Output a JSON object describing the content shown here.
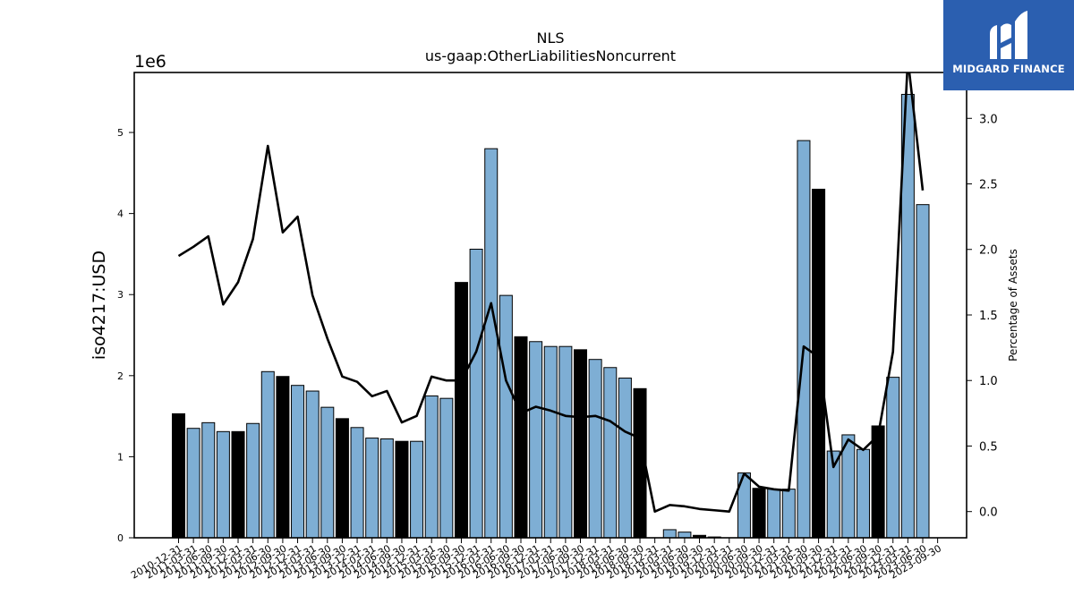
{
  "logo": {
    "text": "MIDGARD FINANCE",
    "icon": "midgard-logo-icon",
    "color": "#2b5fb0"
  },
  "chart_data": {
    "type": "bar",
    "title": "NLS",
    "subtitle": "us-gaap:OtherLiabilitiesNoncurrent",
    "ylabel": "iso4217:USD",
    "y_offset_label": "1e6",
    "y2label": "Percentage of Assets",
    "ylim": [
      0,
      5740000
    ],
    "y2lim": [
      -0.2,
      3.35
    ],
    "yticks": [
      "0",
      "1",
      "2",
      "3",
      "4",
      "5"
    ],
    "y2ticks": [
      "0.0",
      "0.5",
      "1.0",
      "1.5",
      "2.0",
      "2.5",
      "3.0"
    ],
    "grid": false,
    "colors": {
      "bar": "#7eaed4",
      "annual_bar": "#000000",
      "line": "#000000"
    },
    "categories": [
      "2010-12-31",
      "2011-03-31",
      "2011-06-30",
      "2011-09-30",
      "2011-12-31",
      "2012-03-31",
      "2012-06-30",
      "2012-09-30",
      "2012-12-31",
      "2013-03-31",
      "2013-06-30",
      "2013-09-30",
      "2013-12-31",
      "2014-03-31",
      "2014-06-30",
      "2014-09-30",
      "2014-12-31",
      "2015-03-31",
      "2015-06-30",
      "2015-09-30",
      "2015-12-31",
      "2016-03-31",
      "2016-06-30",
      "2016-09-30",
      "2016-12-31",
      "2017-03-31",
      "2017-06-30",
      "2017-09-30",
      "2017-12-31",
      "2018-03-31",
      "2018-06-30",
      "2018-09-30",
      "2018-12-31",
      "2019-03-31",
      "2019-06-30",
      "2019-09-30",
      "2019-12-31",
      "2020-03-31",
      "2020-06-30",
      "2020-09-30",
      "2020-12-31",
      "2021-03-31",
      "2021-06-30",
      "2021-09-30",
      "2021-12-31",
      "2022-03-31",
      "2022-06-30",
      "2022-09-30",
      "2022-12-31",
      "2023-03-31",
      "2023-06-30",
      "2023-09-30"
    ],
    "tick_labels": [
      "2010-12-31",
      "2011-03-31",
      "2011-06-30",
      "2011-09-30",
      "2011-12-31",
      "2012-03-31",
      "2012-06-30",
      "2012-09-30",
      "2012-12-31",
      "2013-03-31",
      "2013-06-30",
      "2013-09-30",
      "2013-12-31",
      "2014-03-31",
      "2014-06-30",
      "2014-09-30",
      "2014-12-31",
      "2015-03-31",
      "2015-06-30",
      "2015-09-30",
      "2015-12-31",
      "2016-03-31",
      "2016-06-30",
      "2016-09-30",
      "2016-12-31",
      "2017-03-31",
      "2017-06-30",
      "2017-09-30",
      "2017-12-31",
      "2018-03-31",
      "2018-06-30",
      "2018-09-30",
      "2018-12-31",
      "2019-03-31",
      "2019-06-30",
      "2019-09-30",
      "2019-12-31",
      "2020-03-31",
      "2020-06-30",
      "2020-09-30",
      "2020-12-31",
      "2021-03-31",
      "2021-06-30",
      "2021-09-30",
      "2021-12-31",
      "2022-03-31",
      "2022-06-30",
      "2022-09-30",
      "2022-12-31",
      "2023-03-31",
      "2023-06-30",
      "2023-09-30"
    ],
    "values": [
      1530000,
      1350000,
      1420000,
      1310000,
      1310000,
      1410000,
      2050000,
      1990000,
      1880000,
      1810000,
      1610000,
      1470000,
      1360000,
      1230000,
      1220000,
      1190000,
      1190000,
      1750000,
      1720000,
      3150000,
      3560000,
      4800000,
      2990000,
      2480000,
      2420000,
      2360000,
      2360000,
      2320000,
      2200000,
      2100000,
      1970000,
      1840000,
      0,
      100000,
      70000,
      30000,
      10000,
      0,
      800000,
      610000,
      600000,
      600000,
      4900000,
      4300000,
      1070000,
      1270000,
      1090000,
      1380000,
      1980000,
      5470000,
      4110000,
      0
    ],
    "annual": [
      true,
      false,
      false,
      false,
      true,
      false,
      false,
      true,
      false,
      false,
      false,
      true,
      false,
      false,
      false,
      true,
      false,
      false,
      false,
      true,
      false,
      false,
      false,
      true,
      false,
      false,
      false,
      true,
      false,
      false,
      false,
      true,
      false,
      false,
      false,
      true,
      false,
      false,
      false,
      true,
      false,
      false,
      false,
      true,
      false,
      false,
      false,
      true,
      false,
      false,
      false,
      false
    ],
    "series": [
      {
        "name": "OtherLiabilitiesNoncurrent",
        "axis": "left",
        "values": [
          1530000,
          1350000,
          1420000,
          1310000,
          1310000,
          1410000,
          2050000,
          1990000,
          1880000,
          1810000,
          1610000,
          1470000,
          1360000,
          1230000,
          1220000,
          1190000,
          1190000,
          1750000,
          1720000,
          3150000,
          3560000,
          4800000,
          2990000,
          2480000,
          2420000,
          2360000,
          2360000,
          2320000,
          2200000,
          2100000,
          1970000,
          1840000,
          0,
          100000,
          70000,
          30000,
          10000,
          0,
          800000,
          610000,
          600000,
          600000,
          4900000,
          4300000,
          1070000,
          1270000,
          1090000,
          1380000,
          1980000,
          5470000,
          4110000,
          0
        ]
      },
      {
        "name": "Percentage of Assets",
        "axis": "right",
        "type": "line",
        "values": [
          1.95,
          2.02,
          2.1,
          1.58,
          1.75,
          2.08,
          2.79,
          2.13,
          2.25,
          1.65,
          1.32,
          1.03,
          0.99,
          0.88,
          0.92,
          0.68,
          0.73,
          1.03,
          1.0,
          1.0,
          1.22,
          1.59,
          1.0,
          0.75,
          0.8,
          0.77,
          0.73,
          0.72,
          0.73,
          0.69,
          0.61,
          0.56,
          0.0,
          0.05,
          0.04,
          0.02,
          0.01,
          0.0,
          0.29,
          0.19,
          0.17,
          0.16,
          1.26,
          1.18,
          0.34,
          0.55,
          0.47,
          0.58,
          1.22,
          3.45,
          2.45,
          null
        ]
      }
    ]
  }
}
